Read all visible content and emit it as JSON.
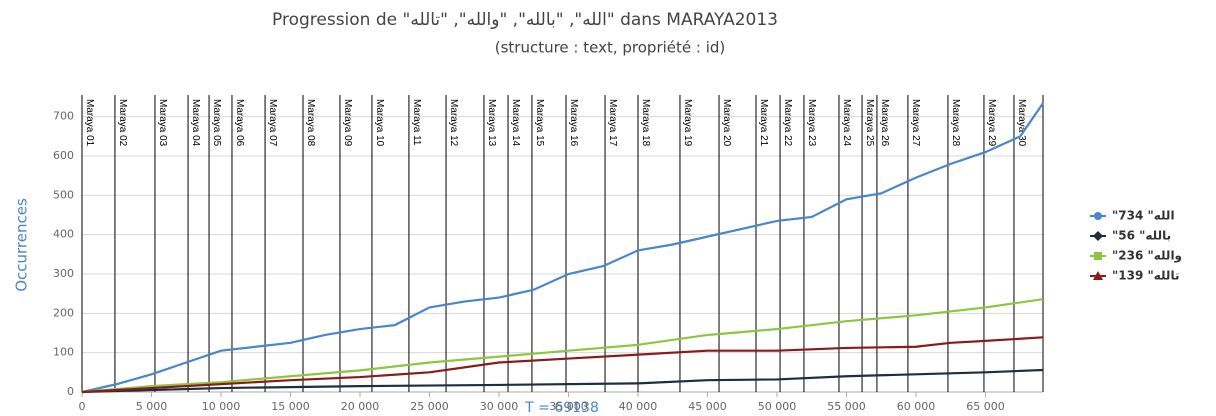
{
  "chart_data": {
    "type": "line",
    "title": "Progression de \"الله\", \"بالله\", \"والله\", \"تالله\" dans MARAYA2013",
    "subtitle": "(structure : text, propriété : id)",
    "y_label": "Occurrences",
    "x_label": "T = 69138",
    "xlim": [
      0,
      69138
    ],
    "ylim": [
      0,
      750
    ],
    "xticks": [
      0,
      {
        "value": 5000,
        "label": "5 000"
      },
      {
        "value": 10000,
        "label": "10 000"
      },
      {
        "value": 15000,
        "label": "15 000"
      },
      {
        "value": 20000,
        "label": "20 000"
      },
      {
        "value": 25000,
        "label": "25 000"
      },
      {
        "value": 30000,
        "label": "30 000"
      },
      {
        "value": 35000,
        "label": "35 000"
      },
      {
        "value": 40000,
        "label": "40 000"
      },
      {
        "value": 45000,
        "label": "45 000"
      },
      {
        "value": 50000,
        "label": "50 000"
      },
      {
        "value": 55000,
        "label": "55 000"
      },
      {
        "value": 60000,
        "label": "60 000"
      },
      {
        "value": 65000,
        "label": "65 000"
      }
    ],
    "yticks": [
      0,
      100,
      200,
      300,
      400,
      500,
      600,
      700
    ],
    "grid": true,
    "legend": "right",
    "sections": [
      {
        "label": "Maraya 01",
        "x": 0
      },
      {
        "label": "Maraya 02",
        "x": 2370
      },
      {
        "label": "Maraya 03",
        "x": 5250
      },
      {
        "label": "Maraya 04",
        "x": 7630
      },
      {
        "label": "Maraya 05",
        "x": 9140
      },
      {
        "label": "Maraya 06",
        "x": 10790
      },
      {
        "label": "Maraya 07",
        "x": 13170
      },
      {
        "label": "Maraya 08",
        "x": 15900
      },
      {
        "label": "Maraya 09",
        "x": 18560
      },
      {
        "label": "Maraya 10",
        "x": 20860
      },
      {
        "label": "Maraya 11",
        "x": 23520
      },
      {
        "label": "Maraya 12",
        "x": 26190
      },
      {
        "label": "Maraya 13",
        "x": 28920
      },
      {
        "label": "Maraya 14",
        "x": 30650
      },
      {
        "label": "Maraya 15",
        "x": 32370
      },
      {
        "label": "Maraya 16",
        "x": 34820
      },
      {
        "label": "Maraya 17",
        "x": 37630
      },
      {
        "label": "Maraya 18",
        "x": 40000
      },
      {
        "label": "Maraya 19",
        "x": 43020
      },
      {
        "label": "Maraya 20",
        "x": 45830
      },
      {
        "label": "Maraya 21",
        "x": 48490
      },
      {
        "label": "Maraya 22",
        "x": 50220
      },
      {
        "label": "Maraya 23",
        "x": 51940
      },
      {
        "label": "Maraya 24",
        "x": 54460
      },
      {
        "label": "Maraya 25",
        "x": 56120
      },
      {
        "label": "Maraya 26",
        "x": 57190
      },
      {
        "label": "Maraya 27",
        "x": 59420
      },
      {
        "label": "Maraya 28",
        "x": 62300
      },
      {
        "label": "Maraya 29",
        "x": 64890
      },
      {
        "label": "Maraya 30",
        "x": 67050
      }
    ],
    "series": [
      {
        "name": "\"الله\" 734",
        "color": "#4a86c8",
        "marker": "circle",
        "x": [
          0,
          2500,
          5000,
          7500,
          10000,
          12500,
          15000,
          17500,
          20000,
          22500,
          25000,
          27500,
          30000,
          32500,
          35000,
          37500,
          40000,
          42500,
          45000,
          47500,
          50000,
          52500,
          55000,
          57500,
          60000,
          62500,
          65000,
          67500,
          69138
        ],
        "values": [
          0,
          20,
          45,
          75,
          105,
          115,
          125,
          145,
          160,
          170,
          215,
          230,
          240,
          260,
          300,
          320,
          360,
          375,
          395,
          415,
          435,
          445,
          490,
          505,
          545,
          580,
          610,
          650,
          734
        ]
      },
      {
        "name": "\"بالله\" 56",
        "color": "#1c2e40",
        "marker": "diamond",
        "x": [
          0,
          10000,
          20000,
          30000,
          40000,
          45000,
          50000,
          55000,
          60000,
          65000,
          69138
        ],
        "values": [
          0,
          10,
          15,
          18,
          22,
          30,
          32,
          40,
          45,
          50,
          56
        ]
      },
      {
        "name": "\"والله\" 236",
        "color": "#8dc63f",
        "marker": "square",
        "x": [
          0,
          5000,
          10000,
          15000,
          20000,
          25000,
          30000,
          35000,
          40000,
          45000,
          50000,
          55000,
          60000,
          65000,
          69138
        ],
        "values": [
          0,
          15,
          25,
          40,
          55,
          75,
          90,
          105,
          120,
          145,
          160,
          180,
          195,
          215,
          236
        ]
      },
      {
        "name": "\"تالله\" 139",
        "color": "#8b1a1a",
        "marker": "triangle",
        "x": [
          0,
          5000,
          10000,
          15000,
          20000,
          25000,
          30000,
          35000,
          40000,
          45000,
          50000,
          55000,
          60000,
          62500,
          65000,
          69138
        ],
        "values": [
          0,
          10,
          20,
          30,
          38,
          50,
          75,
          85,
          95,
          105,
          105,
          112,
          115,
          125,
          130,
          139
        ]
      }
    ]
  }
}
